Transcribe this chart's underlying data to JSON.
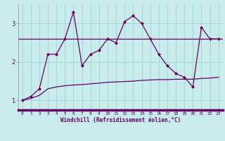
{
  "hours": [
    0,
    1,
    2,
    3,
    4,
    5,
    6,
    7,
    8,
    9,
    10,
    11,
    12,
    13,
    14,
    15,
    16,
    17,
    18,
    19,
    20,
    21,
    22,
    23
  ],
  "line1": [
    1.0,
    1.1,
    1.3,
    2.2,
    2.2,
    2.6,
    3.3,
    1.9,
    2.2,
    2.3,
    2.6,
    2.5,
    3.05,
    3.2,
    3.0,
    2.6,
    2.2,
    1.9,
    1.7,
    1.6,
    1.35,
    2.9,
    2.6,
    2.6
  ],
  "line2": [
    1.0,
    1.05,
    1.13,
    1.3,
    1.35,
    1.38,
    1.4,
    1.41,
    1.43,
    1.45,
    1.47,
    1.48,
    1.49,
    1.5,
    1.52,
    1.53,
    1.54,
    1.54,
    1.55,
    1.55,
    1.55,
    1.57,
    1.58,
    1.6
  ],
  "line_color": "#660066",
  "bg_color": "#c8ecec",
  "grid_color": "#a8d4d4",
  "axis_bar_color": "#660066",
  "xlabel": "Windchill (Refroidissement éolien,°C)",
  "ylim": [
    0.75,
    3.5
  ],
  "xlim": [
    -0.5,
    23.5
  ],
  "xticks": [
    0,
    1,
    2,
    3,
    4,
    5,
    6,
    7,
    8,
    9,
    10,
    11,
    12,
    13,
    14,
    15,
    16,
    17,
    18,
    19,
    20,
    21,
    22,
    23
  ],
  "yticks": [
    1,
    2,
    3
  ],
  "hline_y": 2.6
}
